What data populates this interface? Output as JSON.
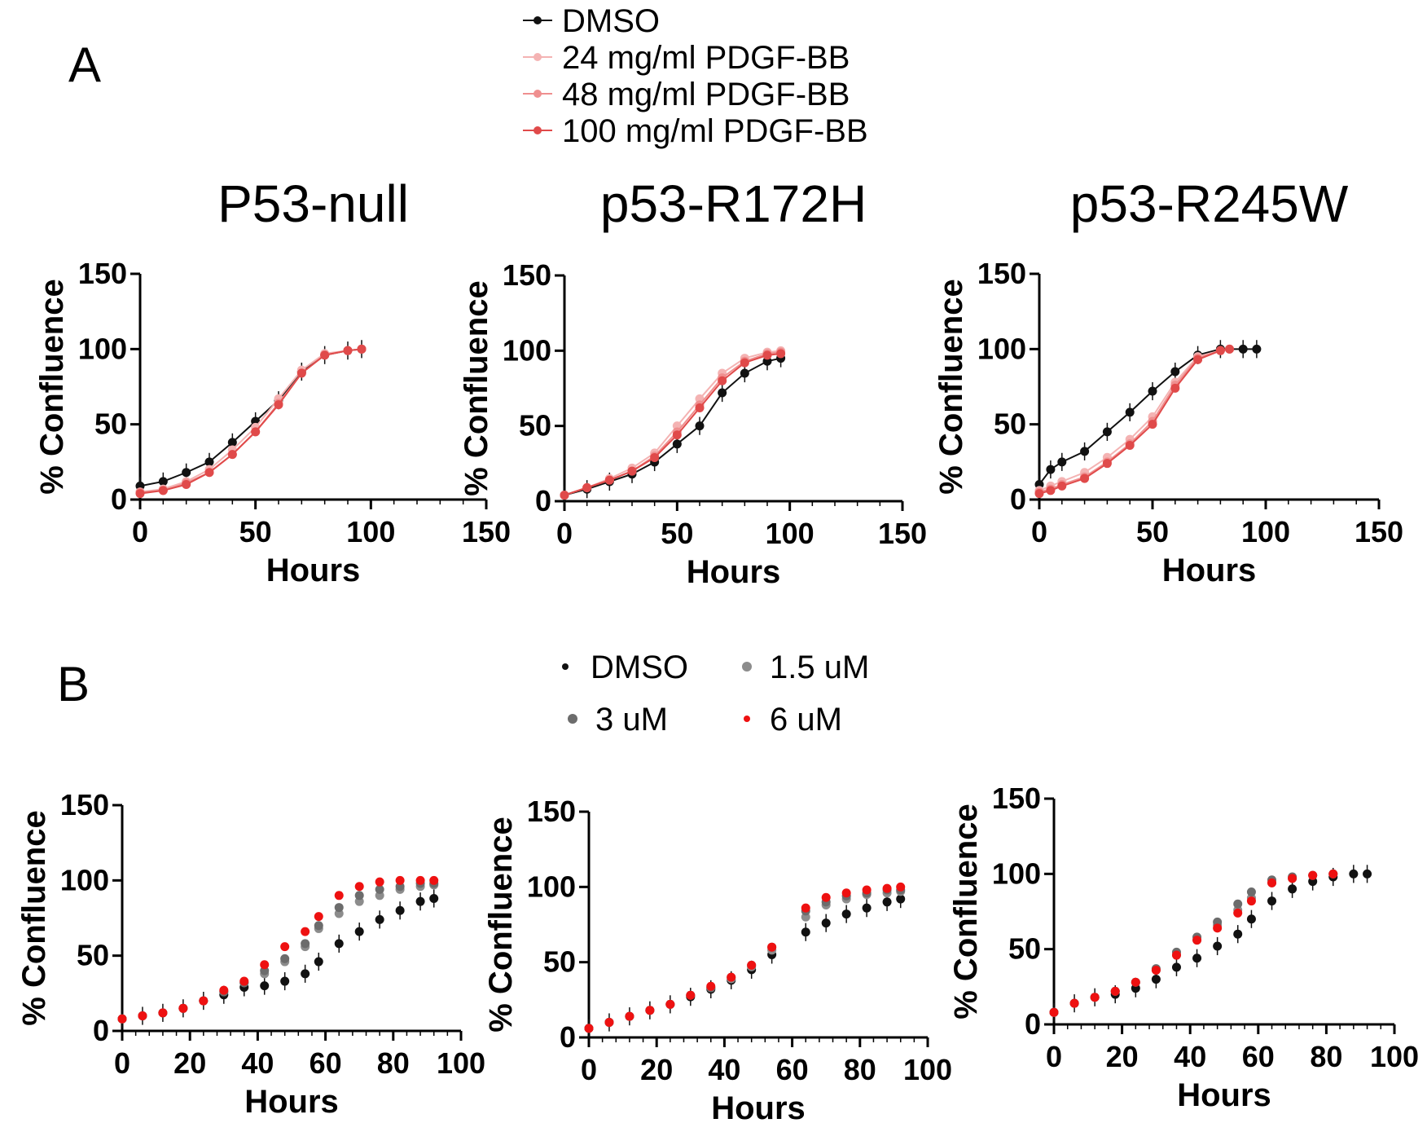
{
  "figure": {
    "panel_a_letter": "A",
    "panel_b_letter": "B",
    "legend_a": [
      {
        "label": "DMSO",
        "color": "#111111"
      },
      {
        "label": "24 mg/ml PDGF-BB",
        "color": "#f4b3b3"
      },
      {
        "label": "48 mg/ml PDGF-BB",
        "color": "#ef8f8f"
      },
      {
        "label": "100 mg/ml PDGF-BB",
        "color": "#e04a4a"
      }
    ],
    "legend_b": [
      {
        "label": "DMSO",
        "color": "#111111"
      },
      {
        "label": "1.5 uM",
        "color": "#8c8c8c"
      },
      {
        "label": "3 uM",
        "color": "#6c6c6c"
      },
      {
        "label": "6 uM",
        "color": "#ee1111"
      }
    ]
  },
  "chart_data": [
    {
      "type": "scatter",
      "panel": "A",
      "title": "P53-null",
      "xlabel": "Hours",
      "ylabel": "% Confluence",
      "xlim": [
        0,
        150
      ],
      "ylim": [
        0,
        150
      ],
      "xticks": [
        "0",
        "50",
        "100",
        "150"
      ],
      "yticks": [
        "0",
        "50",
        "100",
        "150"
      ],
      "grid": false,
      "error_bars": true,
      "series": [
        {
          "name": "DMSO",
          "x": [
            0,
            10,
            20,
            30,
            40,
            50,
            60,
            70,
            80,
            90,
            96
          ],
          "y": [
            9,
            12,
            18,
            25,
            38,
            52,
            66,
            85,
            96,
            99,
            100
          ]
        },
        {
          "name": "24 mg/ml PDGF-BB",
          "x": [
            0,
            10,
            20,
            30,
            40,
            50,
            60,
            70,
            80,
            90,
            96
          ],
          "y": [
            5,
            7,
            12,
            20,
            33,
            48,
            67,
            86,
            97,
            99,
            100
          ]
        },
        {
          "name": "48 mg/ml PDGF-BB",
          "x": [
            0,
            10,
            20,
            30,
            40,
            50,
            60,
            70,
            80,
            90,
            96
          ],
          "y": [
            5,
            6,
            11,
            18,
            30,
            45,
            64,
            84,
            96,
            99,
            100
          ]
        },
        {
          "name": "100 mg/ml PDGF-BB",
          "x": [
            0,
            10,
            20,
            30,
            40,
            50,
            60,
            70,
            80,
            90,
            96
          ],
          "y": [
            4,
            6,
            10,
            18,
            30,
            45,
            63,
            84,
            96,
            99,
            100
          ]
        }
      ]
    },
    {
      "type": "scatter",
      "panel": "A",
      "title": "p53-R172H",
      "xlabel": "Hours",
      "ylabel": "% Confluence",
      "xlim": [
        0,
        150
      ],
      "ylim": [
        0,
        150
      ],
      "xticks": [
        "0",
        "50",
        "100",
        "150"
      ],
      "yticks": [
        "0",
        "50",
        "100",
        "150"
      ],
      "grid": false,
      "error_bars": true,
      "series": [
        {
          "name": "DMSO",
          "x": [
            0,
            10,
            20,
            30,
            40,
            50,
            60,
            70,
            80,
            90,
            96
          ],
          "y": [
            4,
            8,
            13,
            18,
            26,
            38,
            50,
            72,
            85,
            93,
            95
          ]
        },
        {
          "name": "24 mg/ml PDGF-BB",
          "x": [
            0,
            10,
            20,
            30,
            40,
            50,
            60,
            70,
            80,
            90,
            96
          ],
          "y": [
            4,
            9,
            15,
            22,
            32,
            50,
            68,
            85,
            95,
            99,
            100
          ]
        },
        {
          "name": "48 mg/ml PDGF-BB",
          "x": [
            0,
            10,
            20,
            30,
            40,
            50,
            60,
            70,
            80,
            90,
            96
          ],
          "y": [
            4,
            9,
            14,
            20,
            30,
            46,
            64,
            82,
            93,
            98,
            99
          ]
        },
        {
          "name": "100 mg/ml PDGF-BB",
          "x": [
            0,
            10,
            20,
            30,
            40,
            50,
            60,
            70,
            80,
            90,
            96
          ],
          "y": [
            4,
            9,
            14,
            20,
            29,
            44,
            62,
            80,
            92,
            97,
            98
          ]
        }
      ]
    },
    {
      "type": "scatter",
      "panel": "A",
      "title": "p53-R245W",
      "xlabel": "Hours",
      "ylabel": "% Confluence",
      "xlim": [
        0,
        150
      ],
      "ylim": [
        0,
        150
      ],
      "xticks": [
        "0",
        "50",
        "100",
        "150"
      ],
      "yticks": [
        "0",
        "50",
        "100",
        "150"
      ],
      "grid": false,
      "error_bars": true,
      "series": [
        {
          "name": "DMSO",
          "x": [
            0,
            5,
            10,
            20,
            30,
            40,
            50,
            60,
            70,
            80,
            90,
            96
          ],
          "y": [
            10,
            20,
            25,
            32,
            45,
            58,
            72,
            85,
            96,
            100,
            100,
            100
          ]
        },
        {
          "name": "24 mg/ml PDGF-BB",
          "x": [
            0,
            5,
            10,
            20,
            30,
            40,
            50,
            60,
            70,
            80,
            84
          ],
          "y": [
            6,
            9,
            12,
            18,
            28,
            40,
            55,
            78,
            95,
            99,
            100
          ]
        },
        {
          "name": "48 mg/ml PDGF-BB",
          "x": [
            0,
            5,
            10,
            20,
            30,
            40,
            50,
            60,
            70,
            80,
            84
          ],
          "y": [
            5,
            7,
            10,
            15,
            25,
            37,
            52,
            76,
            94,
            99,
            100
          ]
        },
        {
          "name": "100 mg/ml PDGF-BB",
          "x": [
            0,
            5,
            10,
            20,
            30,
            40,
            50,
            60,
            70,
            80,
            84
          ],
          "y": [
            4,
            6,
            9,
            14,
            24,
            36,
            50,
            74,
            93,
            99,
            100
          ]
        }
      ]
    },
    {
      "type": "scatter",
      "panel": "B",
      "title": "",
      "xlabel": "Hours",
      "ylabel": "% Confluence",
      "xlim": [
        0,
        100
      ],
      "ylim": [
        0,
        150
      ],
      "xticks": [
        "0",
        "20",
        "40",
        "60",
        "80",
        "100"
      ],
      "yticks": [
        "0",
        "50",
        "100",
        "150"
      ],
      "grid": false,
      "error_bars": true,
      "series": [
        {
          "name": "DMSO",
          "x": [
            0,
            6,
            12,
            18,
            24,
            30,
            36,
            42,
            48,
            54,
            58,
            64,
            70,
            76,
            82,
            88,
            92
          ],
          "y": [
            8,
            10,
            12,
            15,
            20,
            24,
            29,
            30,
            33,
            38,
            46,
            58,
            66,
            74,
            80,
            86,
            88
          ]
        },
        {
          "name": "1.5 uM",
          "x": [
            0,
            6,
            12,
            18,
            24,
            30,
            36,
            42,
            48,
            54,
            58,
            64,
            70,
            76,
            82,
            88,
            92
          ],
          "y": [
            8,
            10,
            12,
            15,
            20,
            26,
            32,
            38,
            46,
            56,
            68,
            78,
            86,
            90,
            94,
            96,
            97
          ]
        },
        {
          "name": "3 uM",
          "x": [
            0,
            6,
            12,
            18,
            24,
            30,
            36,
            42,
            48,
            54,
            58,
            64,
            70,
            76,
            82,
            88,
            92
          ],
          "y": [
            8,
            10,
            12,
            15,
            20,
            26,
            32,
            40,
            48,
            58,
            70,
            82,
            90,
            94,
            96,
            98,
            98
          ]
        },
        {
          "name": "6 uM",
          "x": [
            0,
            6,
            12,
            18,
            24,
            30,
            36,
            42,
            48,
            54,
            58,
            64,
            70,
            76,
            82,
            88,
            92
          ],
          "y": [
            8,
            10,
            12,
            15,
            20,
            27,
            33,
            44,
            56,
            66,
            76,
            90,
            96,
            99,
            100,
            100,
            100
          ]
        }
      ]
    },
    {
      "type": "scatter",
      "panel": "B",
      "title": "",
      "xlabel": "Hours",
      "ylabel": "% Confluence",
      "xlim": [
        0,
        100
      ],
      "ylim": [
        0,
        150
      ],
      "xticks": [
        "0",
        "20",
        "40",
        "60",
        "80",
        "100"
      ],
      "yticks": [
        "0",
        "50",
        "100",
        "150"
      ],
      "grid": false,
      "error_bars": true,
      "series": [
        {
          "name": "DMSO",
          "x": [
            0,
            6,
            12,
            18,
            24,
            30,
            36,
            42,
            48,
            54,
            64,
            70,
            76,
            82,
            88,
            92
          ],
          "y": [
            6,
            10,
            14,
            18,
            22,
            27,
            32,
            38,
            45,
            55,
            70,
            76,
            82,
            86,
            90,
            92
          ]
        },
        {
          "name": "1.5 uM",
          "x": [
            0,
            6,
            12,
            18,
            24,
            30,
            36,
            42,
            48,
            54,
            64,
            70,
            76,
            82,
            88,
            92
          ],
          "y": [
            6,
            10,
            14,
            18,
            22,
            28,
            33,
            39,
            47,
            58,
            80,
            88,
            92,
            95,
            96,
            97
          ]
        },
        {
          "name": "3 uM",
          "x": [
            0,
            6,
            12,
            18,
            24,
            30,
            36,
            42,
            48,
            54,
            64,
            70,
            76,
            82,
            88,
            92
          ],
          "y": [
            6,
            10,
            14,
            18,
            22,
            28,
            33,
            40,
            48,
            60,
            84,
            90,
            94,
            96,
            98,
            98
          ]
        },
        {
          "name": "6 uM",
          "x": [
            0,
            6,
            12,
            18,
            24,
            30,
            36,
            42,
            48,
            54,
            64,
            70,
            76,
            82,
            88,
            92
          ],
          "y": [
            6,
            10,
            14,
            18,
            22,
            28,
            34,
            40,
            48,
            60,
            86,
            93,
            96,
            98,
            99,
            100
          ]
        }
      ]
    },
    {
      "type": "scatter",
      "panel": "B",
      "title": "",
      "xlabel": "Hours",
      "ylabel": "% Confluence",
      "xlim": [
        0,
        100
      ],
      "ylim": [
        0,
        150
      ],
      "xticks": [
        "0",
        "20",
        "40",
        "60",
        "80",
        "100"
      ],
      "yticks": [
        "0",
        "50",
        "100",
        "150"
      ],
      "grid": false,
      "error_bars": true,
      "series": [
        {
          "name": "DMSO",
          "x": [
            0,
            6,
            12,
            18,
            24,
            30,
            36,
            42,
            48,
            54,
            58,
            64,
            70,
            76,
            82,
            88,
            92
          ],
          "y": [
            8,
            14,
            18,
            20,
            24,
            30,
            38,
            44,
            52,
            60,
            70,
            82,
            90,
            95,
            98,
            100,
            100
          ]
        },
        {
          "name": "1.5 uM",
          "x": [
            0,
            6,
            12,
            18,
            24,
            30,
            36,
            42,
            48,
            54,
            58,
            64,
            70,
            76,
            82
          ],
          "y": [
            8,
            14,
            18,
            22,
            28,
            36,
            46,
            56,
            66,
            76,
            84,
            94,
            97,
            99,
            100
          ]
        },
        {
          "name": "3 uM",
          "x": [
            0,
            6,
            12,
            18,
            24,
            30,
            36,
            42,
            48,
            54,
            58,
            64,
            70,
            76,
            82
          ],
          "y": [
            8,
            14,
            18,
            22,
            28,
            37,
            48,
            58,
            68,
            80,
            88,
            96,
            98,
            99,
            100
          ]
        },
        {
          "name": "6 uM",
          "x": [
            0,
            6,
            12,
            18,
            24,
            30,
            36,
            42,
            48,
            54,
            58,
            64,
            70,
            76,
            82
          ],
          "y": [
            8,
            14,
            18,
            22,
            28,
            36,
            46,
            56,
            64,
            74,
            82,
            94,
            97,
            99,
            100
          ]
        }
      ]
    }
  ]
}
